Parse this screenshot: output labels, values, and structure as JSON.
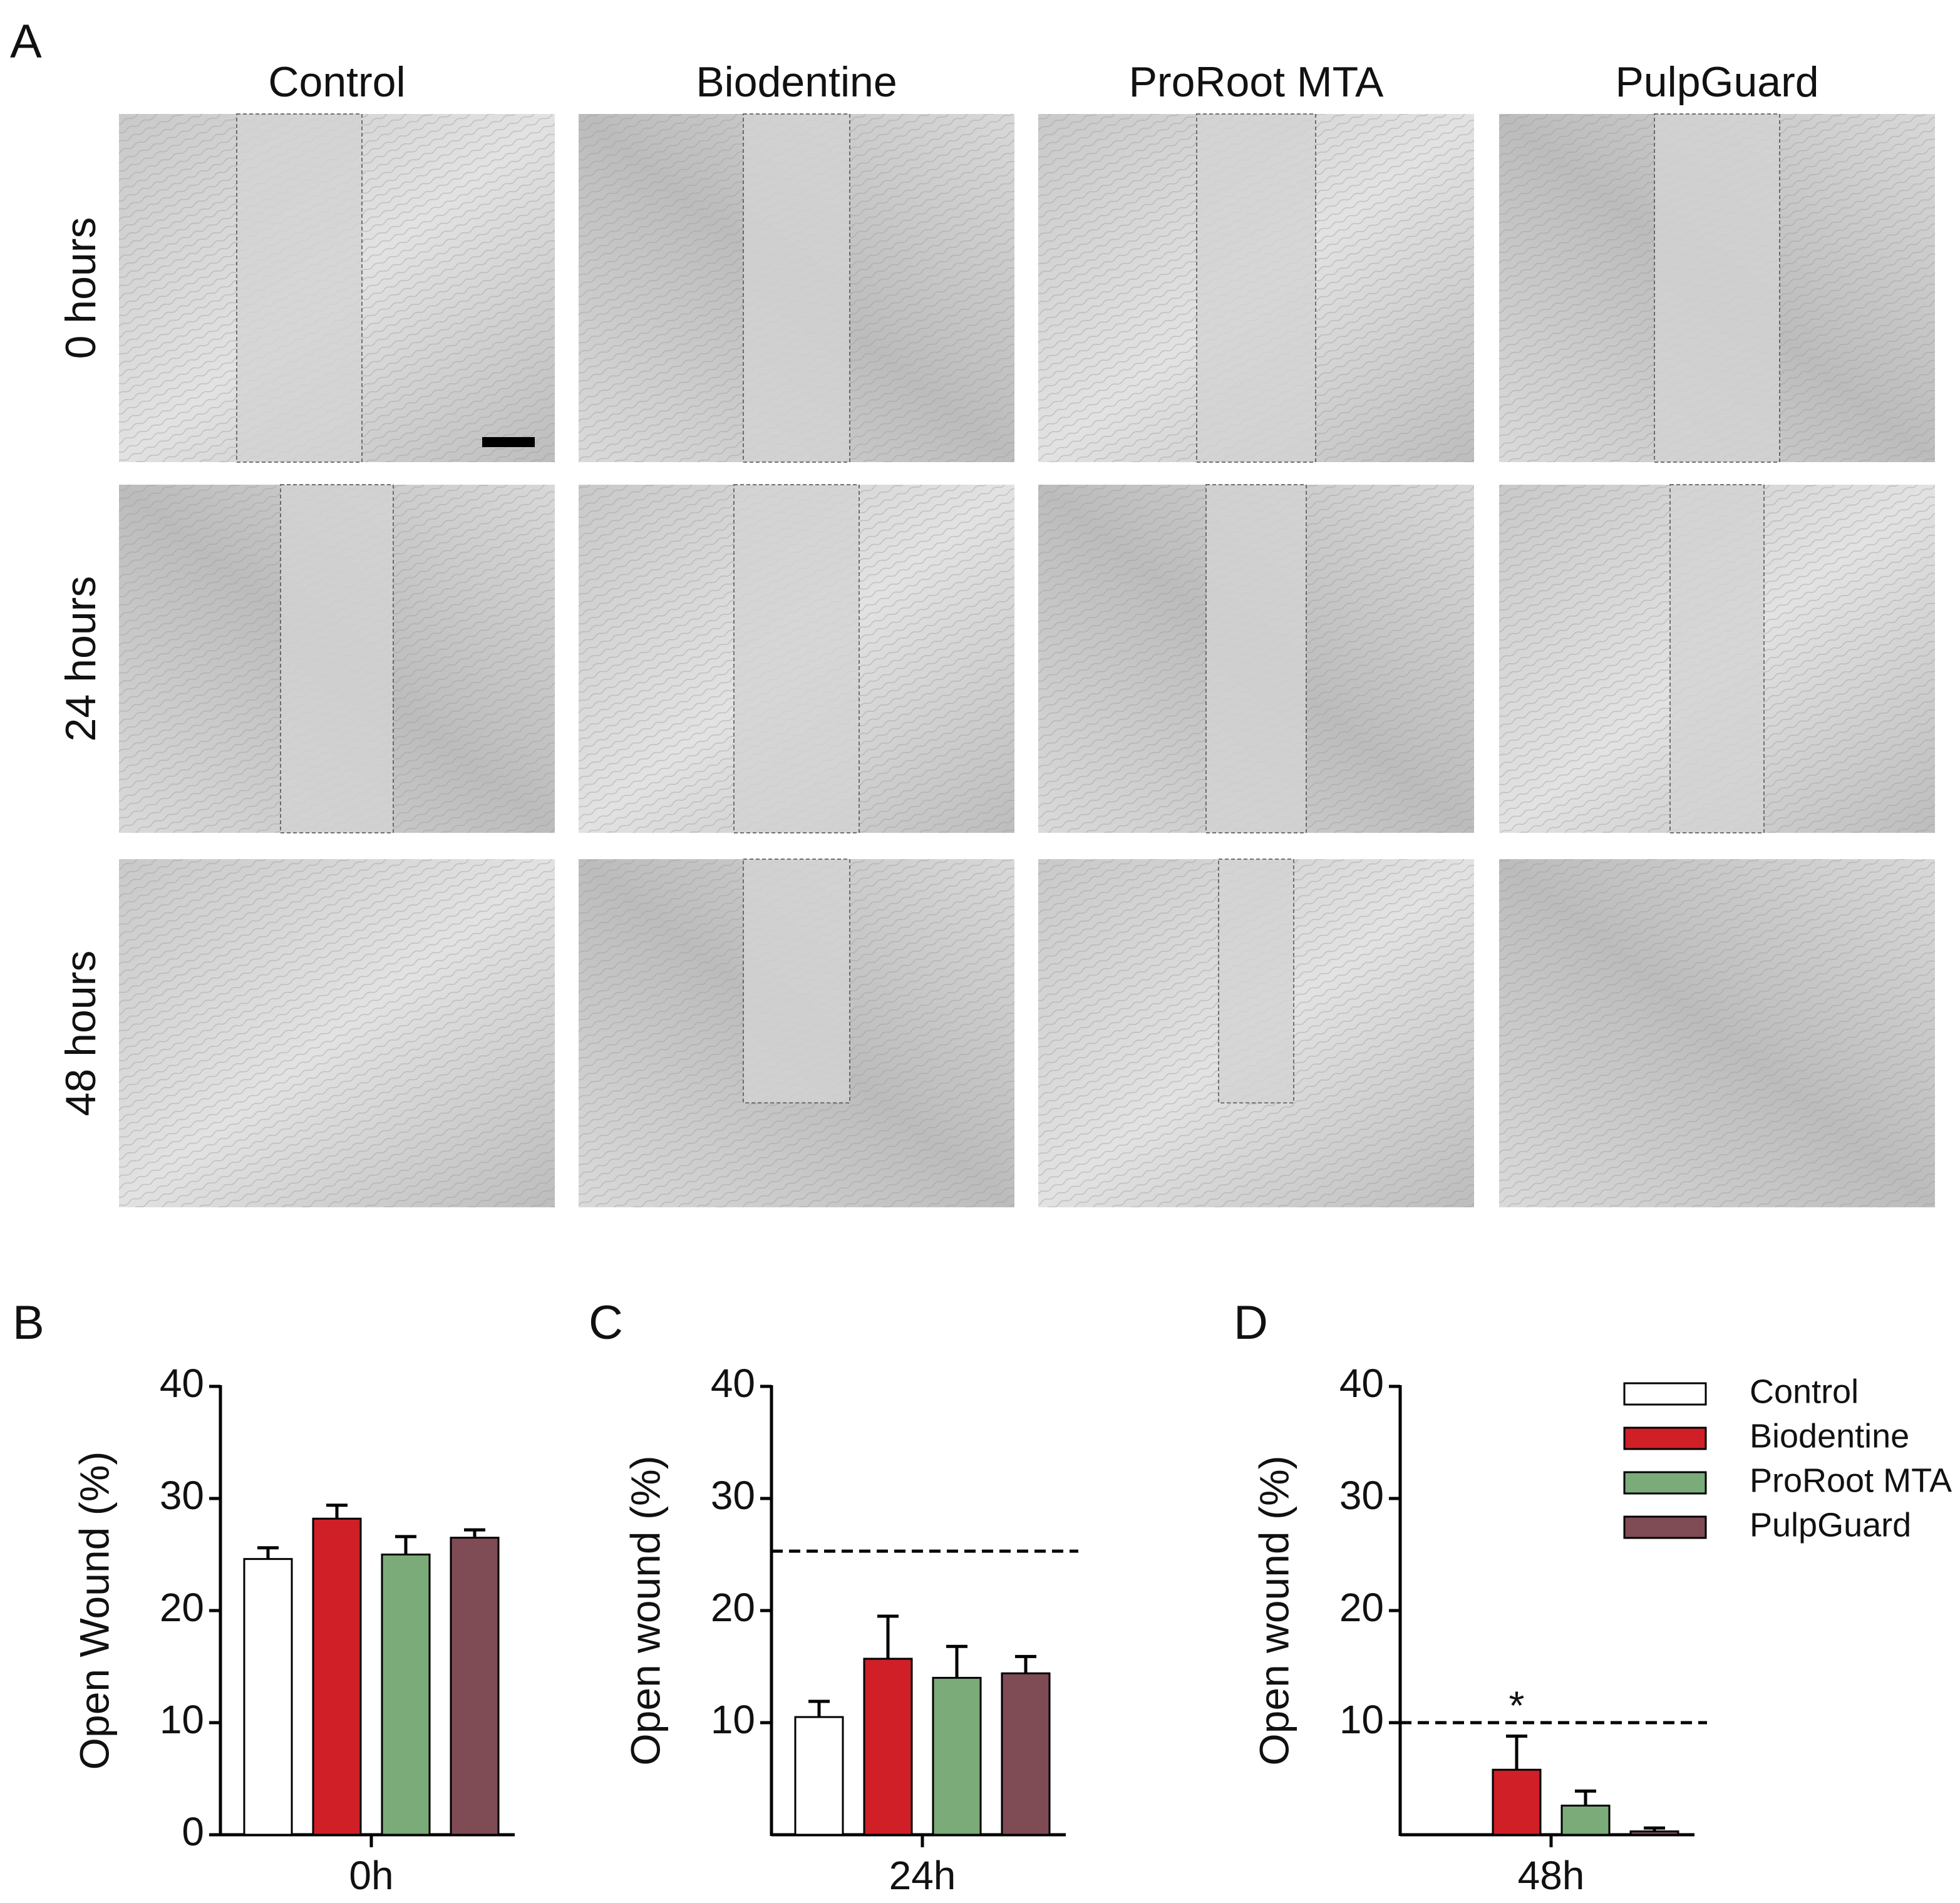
{
  "panel_a": {
    "label": "A",
    "columns": [
      "Control",
      "Biodentine",
      "ProRoot MTA",
      "PulpGuard"
    ],
    "rows": [
      "0 hours",
      "24 hours",
      "48 hours"
    ]
  },
  "chart_data": [
    {
      "type": "bar",
      "panel_label": "B",
      "y_label": "Open Wound (%)",
      "categories": [
        "0h"
      ],
      "ylim": [
        0,
        40
      ],
      "yticks": [
        0,
        10,
        20,
        30,
        40
      ],
      "series": [
        {
          "color": "#ffffff",
          "values": [
            24.6
          ],
          "errors": [
            1.0
          ]
        },
        {
          "color": "#d01f26",
          "values": [
            28.2
          ],
          "errors": [
            1.2
          ]
        },
        {
          "color": "#7aab78",
          "values": [
            25.0
          ],
          "errors": [
            1.6
          ]
        },
        {
          "color": "#7f4b55",
          "values": [
            26.5
          ],
          "errors": [
            0.7
          ]
        }
      ]
    },
    {
      "type": "bar",
      "panel_label": "C",
      "y_label": "Open wound (%)",
      "categories": [
        "24h"
      ],
      "ylim": [
        0,
        40
      ],
      "yticks": [
        10,
        20,
        30,
        40
      ],
      "reference_line": 25.3,
      "series": [
        {
          "color": "#ffffff",
          "values": [
            10.5
          ],
          "errors": [
            1.4
          ]
        },
        {
          "color": "#d01f26",
          "values": [
            15.7
          ],
          "errors": [
            3.8
          ]
        },
        {
          "color": "#7aab78",
          "values": [
            14.0
          ],
          "errors": [
            2.8
          ]
        },
        {
          "color": "#7f4b55",
          "values": [
            14.4
          ],
          "errors": [
            1.5
          ]
        }
      ]
    },
    {
      "type": "bar",
      "panel_label": "D",
      "y_label": "Open wound (%)",
      "categories": [
        "48h"
      ],
      "ylim": [
        0,
        40
      ],
      "yticks": [
        10,
        20,
        30,
        40
      ],
      "reference_line": 10,
      "annotation": "*",
      "legend": "upper right",
      "series": [
        {
          "name": "Control",
          "color": "#ffffff",
          "values": [
            0
          ],
          "errors": [
            0
          ]
        },
        {
          "name": "Biodentine",
          "color": "#d01f26",
          "values": [
            5.8
          ],
          "errors": [
            3.0
          ]
        },
        {
          "name": "ProRoot MTA",
          "color": "#7aab78",
          "values": [
            2.6
          ],
          "errors": [
            1.3
          ]
        },
        {
          "name": "PulpGuard",
          "color": "#7f4b55",
          "values": [
            0.3
          ],
          "errors": [
            0.3
          ]
        }
      ]
    }
  ]
}
